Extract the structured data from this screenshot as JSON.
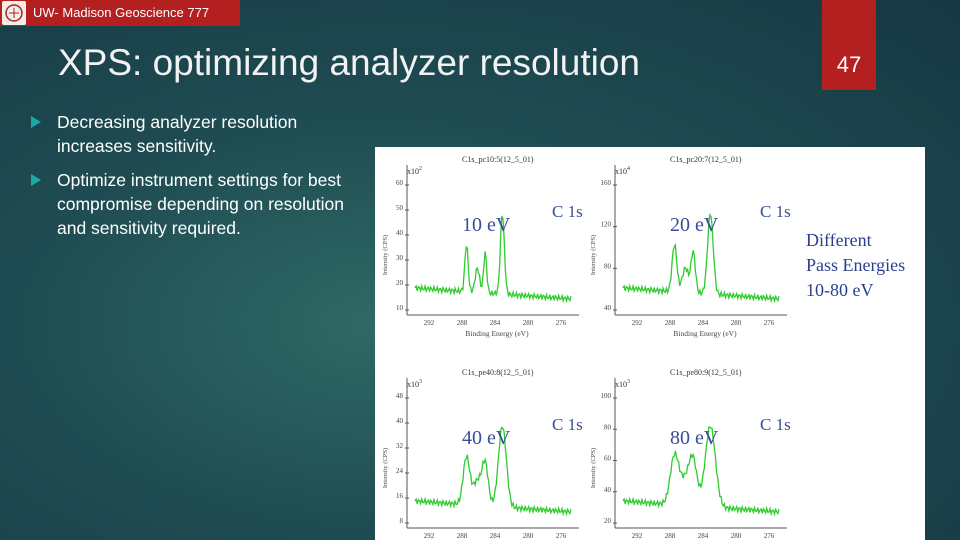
{
  "header": {
    "course": "UW- Madison Geoscience 777",
    "title": "XPS: optimizing analyzer resolution",
    "slide_number": "47"
  },
  "bullets": [
    "Decreasing analyzer resolution increases sensitivity.",
    "Optimize instrument settings for best compromise depending on resolution and sensitivity required."
  ],
  "figure": {
    "panels": [
      {
        "file": "C1s_pc10:5(12_5_01)",
        "pass_energy": "10 eV",
        "peak": "C 1s",
        "scale": "x10",
        "exponent": "2",
        "y_ticks": [
          "60",
          "50",
          "40",
          "30",
          "20",
          "10"
        ]
      },
      {
        "file": "C1s_pc20:7(12_5_01)",
        "pass_energy": "20 eV",
        "peak": "C 1s",
        "scale": "x10",
        "exponent": "4",
        "y_ticks": [
          "160",
          "120",
          "80",
          "40"
        ]
      },
      {
        "file": "C1s_pe40:8(12_5_01)",
        "pass_energy": "40 eV",
        "peak": "C 1s",
        "scale": "x10",
        "exponent": "3",
        "y_ticks": [
          "48",
          "40",
          "32",
          "24",
          "16",
          "8"
        ]
      },
      {
        "file": "C1s_pe80:9(12_5_01)",
        "pass_energy": "80 eV",
        "peak": "C 1s",
        "scale": "x10",
        "exponent": "3",
        "y_ticks": [
          "100",
          "80",
          "60",
          "40",
          "20"
        ]
      }
    ],
    "y_axis_label": "Intensity (CPS)",
    "x_axis_label": "Binding Energy (eV)",
    "x_ticks": [
      "292",
      "288",
      "284",
      "280",
      "276"
    ],
    "caption": [
      "Different",
      "Pass Energies",
      "10-80 eV"
    ]
  }
}
